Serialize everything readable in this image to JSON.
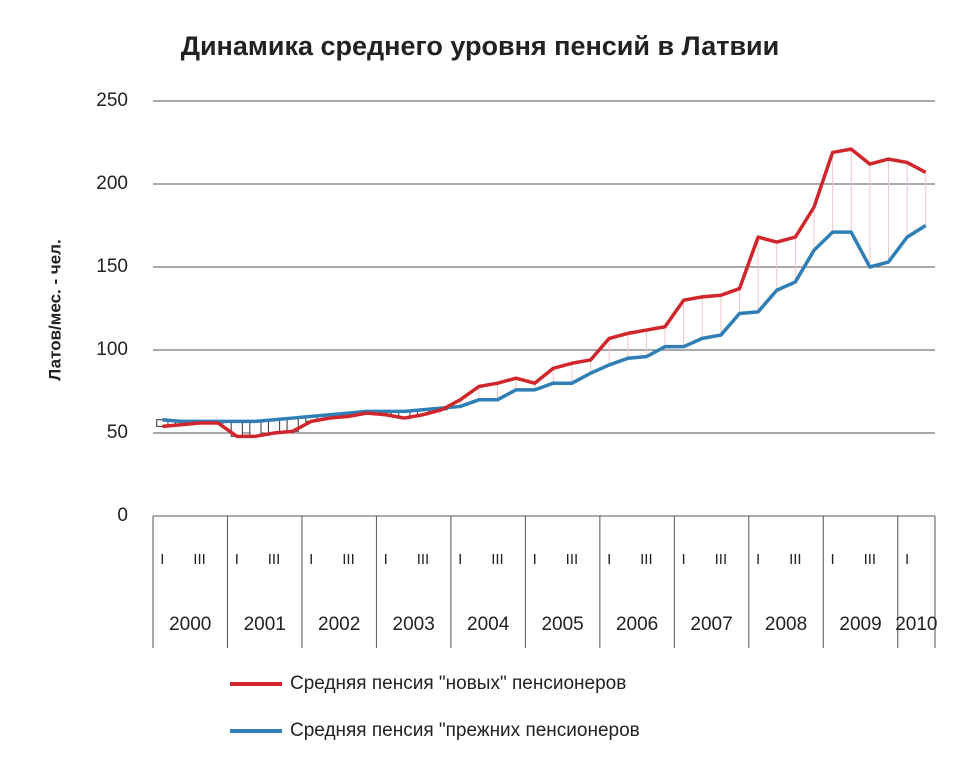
{
  "chart_data": {
    "type": "line",
    "title": "Динамика среднего уровня пенсий в Латвии",
    "y_label": "Латов/мес. - чел.",
    "categories": [
      "I",
      null,
      "III",
      null,
      "I",
      null,
      "III",
      null,
      "I",
      null,
      "III",
      null,
      "I",
      null,
      "III",
      null,
      "I",
      null,
      "III",
      null,
      "I",
      null,
      "III",
      null,
      "I",
      null,
      "III",
      null,
      "I",
      null,
      "III",
      null,
      "I",
      null,
      "III",
      null,
      "I",
      null,
      "III",
      null,
      "I",
      null
    ],
    "year_groups": [
      {
        "label": "2000",
        "count": 4
      },
      {
        "label": "2001",
        "count": 4
      },
      {
        "label": "2002",
        "count": 4
      },
      {
        "label": "2003",
        "count": 4
      },
      {
        "label": "2004",
        "count": 4
      },
      {
        "label": "2005",
        "count": 4
      },
      {
        "label": "2006",
        "count": 4
      },
      {
        "label": "2007",
        "count": 4
      },
      {
        "label": "2008",
        "count": 4
      },
      {
        "label": "2009",
        "count": 4
      },
      {
        "label": "2010",
        "count": 2
      }
    ],
    "series": [
      {
        "name": "Средняя пенсия \"новых\"  пенсионеров",
        "color": "#d0262b",
        "values": [
          54,
          55,
          56,
          56,
          48,
          48,
          50,
          51,
          57,
          59,
          60,
          62,
          61,
          59,
          61,
          64,
          70,
          78,
          80,
          83,
          80,
          89,
          92,
          94,
          107,
          110,
          112,
          114,
          130,
          132,
          133,
          137,
          168,
          165,
          168,
          186,
          219,
          221,
          212,
          215,
          213,
          207
        ]
      },
      {
        "name": "Средняя пенсия \"прежних пенсионеров",
        "color": "#2f7fb6",
        "values": [
          58,
          57,
          57,
          57,
          57,
          57,
          58,
          59,
          60,
          61,
          62,
          63,
          63,
          63,
          64,
          65,
          66,
          70,
          70,
          76,
          76,
          80,
          80,
          86,
          91,
          95,
          96,
          102,
          102,
          107,
          109,
          122,
          123,
          136,
          141,
          160,
          171,
          171,
          150,
          153,
          168,
          175
        ]
      }
    ],
    "ylim": [
      0,
      250
    ],
    "yticks": [
      0,
      50,
      100,
      150,
      200,
      250
    ],
    "grid": true
  }
}
